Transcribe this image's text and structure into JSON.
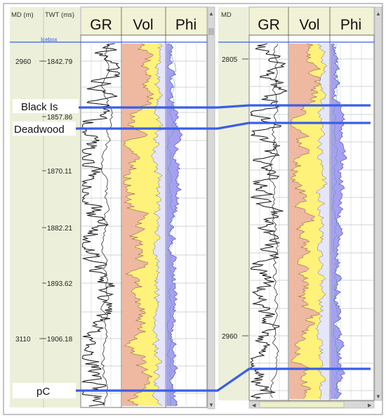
{
  "left_panel": {
    "depth_header": "MD (m)",
    "time_header": "TWT (ms)",
    "track_headers": [
      "GR",
      "Vol",
      "Phi"
    ],
    "marker_label": "Icebox",
    "depth_labels": [
      {
        "text": "2960"
      },
      {
        "text": "3110"
      }
    ],
    "time_labels": [
      {
        "text": "1842.79"
      },
      {
        "text": "1857.86"
      },
      {
        "text": "1870.11"
      },
      {
        "text": "1882.21"
      },
      {
        "text": "1893.62"
      },
      {
        "text": "1906.18"
      }
    ]
  },
  "right_panel": {
    "depth_header": "MD",
    "track_headers": [
      "GR",
      "Vol",
      "Phi"
    ],
    "depth_labels": [
      {
        "text": "2805"
      },
      {
        "text": "2960"
      }
    ]
  },
  "formation_tops": [
    {
      "label": "Black Is"
    },
    {
      "label": "Deadwood"
    },
    {
      "label": "pC"
    }
  ],
  "colors": {
    "top_line": "#3a5ee8",
    "header_bg": "#f2f2d6",
    "depth_track_bg": "#ecf0da",
    "shale_fill": "#efb8a0",
    "sand_fill": "#fff27a",
    "porosity_fill": "#a6a0f2",
    "porosity_light": "#e6e6fa",
    "scrollbar": "#d8d8d8"
  },
  "icons": [
    "scroll-up-arrow-icon",
    "scroll-down-arrow-icon",
    "scroll-left-arrow-icon",
    "scroll-right-arrow-icon"
  ]
}
